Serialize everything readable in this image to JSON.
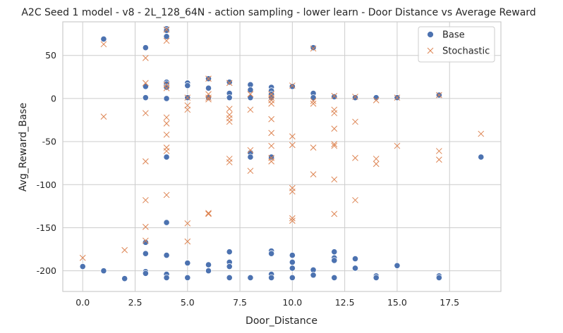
{
  "chart_data": {
    "type": "scatter",
    "title": "A2C Seed 1 model - v8 - 2L_128_64N - action sampling - lower learn - Door Distance vs Average Reward",
    "xlabel": "Door_Distance",
    "ylabel": "Avg_Reward_Base",
    "xlim": [
      -0.95,
      19.95
    ],
    "ylim": [
      -224,
      89
    ],
    "xticks": [
      "0.0",
      "2.5",
      "5.0",
      "7.5",
      "10.0",
      "12.5",
      "15.0",
      "17.5"
    ],
    "yticks": [
      "-200",
      "-150",
      "-100",
      "-50",
      "0",
      "50"
    ],
    "grid": true,
    "legend_position": "top-right",
    "colors": {
      "base": "#4c72b0",
      "stochastic": "#dd8452"
    },
    "series": [
      {
        "name": "Base",
        "marker": "circle",
        "points": [
          [
            0,
            -195
          ],
          [
            1,
            69
          ],
          [
            1,
            -200
          ],
          [
            2,
            -209
          ],
          [
            3,
            59
          ],
          [
            3,
            14
          ],
          [
            3,
            1
          ],
          [
            3,
            -180
          ],
          [
            3,
            -201
          ],
          [
            3,
            -203
          ],
          [
            3,
            -167
          ],
          [
            4,
            81
          ],
          [
            4,
            79
          ],
          [
            4,
            72
          ],
          [
            4,
            19
          ],
          [
            4,
            17
          ],
          [
            4,
            13
          ],
          [
            4,
            0
          ],
          [
            4,
            -68
          ],
          [
            4,
            -144
          ],
          [
            4,
            -182
          ],
          [
            4,
            -204
          ],
          [
            4,
            -208
          ],
          [
            5,
            18
          ],
          [
            5,
            15
          ],
          [
            5,
            1
          ],
          [
            5,
            -191
          ],
          [
            5,
            -208
          ],
          [
            6,
            23
          ],
          [
            6,
            12
          ],
          [
            6,
            1
          ],
          [
            6,
            -193
          ],
          [
            6,
            -200
          ],
          [
            7,
            19
          ],
          [
            7,
            6
          ],
          [
            7,
            1
          ],
          [
            7,
            -178
          ],
          [
            7,
            -190
          ],
          [
            7,
            -195
          ],
          [
            7,
            -208
          ],
          [
            8,
            16
          ],
          [
            8,
            10
          ],
          [
            8,
            1
          ],
          [
            8,
            -63
          ],
          [
            8,
            -68
          ],
          [
            8,
            -208
          ],
          [
            9,
            13
          ],
          [
            9,
            9
          ],
          [
            9,
            5
          ],
          [
            9,
            1
          ],
          [
            9,
            -68
          ],
          [
            9,
            -177
          ],
          [
            9,
            -180
          ],
          [
            9,
            -204
          ],
          [
            9,
            -208
          ],
          [
            10,
            14
          ],
          [
            10,
            -182
          ],
          [
            10,
            -190
          ],
          [
            10,
            -197
          ],
          [
            10,
            -208
          ],
          [
            11,
            59
          ],
          [
            11,
            6
          ],
          [
            11,
            1
          ],
          [
            11,
            -199
          ],
          [
            11,
            -205
          ],
          [
            12,
            2
          ],
          [
            12,
            -178
          ],
          [
            12,
            -185
          ],
          [
            12,
            -188
          ],
          [
            12,
            -208
          ],
          [
            13,
            1
          ],
          [
            13,
            -186
          ],
          [
            13,
            -197
          ],
          [
            14,
            1
          ],
          [
            14,
            -206
          ],
          [
            14,
            -208
          ],
          [
            15,
            1
          ],
          [
            15,
            -194
          ],
          [
            17,
            4
          ],
          [
            17,
            -206
          ],
          [
            17,
            -208
          ],
          [
            19,
            -68
          ]
        ]
      },
      {
        "name": "Stochastic",
        "marker": "x",
        "points": [
          [
            0,
            -185
          ],
          [
            1,
            63
          ],
          [
            1,
            -21
          ],
          [
            2,
            -176
          ],
          [
            3,
            47
          ],
          [
            3,
            18
          ],
          [
            3,
            -17
          ],
          [
            3,
            -73
          ],
          [
            3,
            -118
          ],
          [
            3,
            -149
          ],
          [
            3,
            -165
          ],
          [
            4,
            80
          ],
          [
            4,
            67
          ],
          [
            4,
            16
          ],
          [
            4,
            12
          ],
          [
            4,
            -22
          ],
          [
            4,
            -29
          ],
          [
            4,
            -42
          ],
          [
            4,
            -57
          ],
          [
            4,
            -61
          ],
          [
            4,
            -112
          ],
          [
            5,
            1
          ],
          [
            5,
            -8
          ],
          [
            5,
            -13
          ],
          [
            5,
            -145
          ],
          [
            5,
            -166
          ],
          [
            6,
            23
          ],
          [
            6,
            5
          ],
          [
            6,
            1
          ],
          [
            6,
            -1
          ],
          [
            6,
            -133
          ],
          [
            6,
            -134
          ],
          [
            7,
            18
          ],
          [
            7,
            -12
          ],
          [
            7,
            -19
          ],
          [
            7,
            -23
          ],
          [
            7,
            -27
          ],
          [
            7,
            -70
          ],
          [
            7,
            -74
          ],
          [
            8,
            5
          ],
          [
            8,
            -13
          ],
          [
            8,
            -60
          ],
          [
            8,
            -84
          ],
          [
            9,
            5
          ],
          [
            9,
            1
          ],
          [
            9,
            -2
          ],
          [
            9,
            -6
          ],
          [
            9,
            -24
          ],
          [
            9,
            -40
          ],
          [
            9,
            -55
          ],
          [
            9,
            -69
          ],
          [
            9,
            -73
          ],
          [
            10,
            15
          ],
          [
            10,
            -44
          ],
          [
            10,
            -54
          ],
          [
            10,
            -104
          ],
          [
            10,
            -108
          ],
          [
            10,
            -139
          ],
          [
            10,
            -142
          ],
          [
            11,
            58
          ],
          [
            11,
            -3
          ],
          [
            11,
            -6
          ],
          [
            11,
            -57
          ],
          [
            11,
            -88
          ],
          [
            12,
            3
          ],
          [
            12,
            -13
          ],
          [
            12,
            -17
          ],
          [
            12,
            -35
          ],
          [
            12,
            -53
          ],
          [
            12,
            -55
          ],
          [
            12,
            -94
          ],
          [
            12,
            -134
          ],
          [
            13,
            2
          ],
          [
            13,
            -27
          ],
          [
            13,
            -69
          ],
          [
            13,
            -118
          ],
          [
            14,
            -2
          ],
          [
            14,
            -70
          ],
          [
            14,
            -76
          ],
          [
            15,
            1
          ],
          [
            15,
            -55
          ],
          [
            17,
            4
          ],
          [
            17,
            -61
          ],
          [
            17,
            -71
          ],
          [
            19,
            -41
          ]
        ]
      }
    ]
  }
}
